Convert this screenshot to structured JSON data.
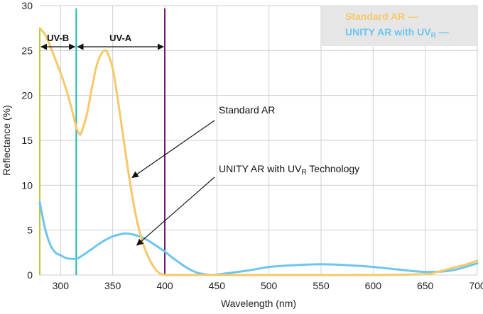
{
  "chart_data": {
    "type": "line",
    "title": "",
    "xlabel": "Wavelength (nm)",
    "ylabel": "Reflectance (%)",
    "xlim": [
      280,
      700
    ],
    "ylim": [
      0,
      30
    ],
    "x_ticks": [
      300,
      350,
      400,
      450,
      500,
      550,
      600,
      650,
      700
    ],
    "x_tick_labels": [
      "300",
      "350",
      "400",
      "450",
      "500",
      "550",
      "600",
      "650",
      "700"
    ],
    "y_ticks": [
      0,
      5,
      10,
      15,
      20,
      25,
      30
    ],
    "y_tick_labels": [
      "0",
      "5",
      "10",
      "15",
      "20",
      "25",
      "30"
    ],
    "grid": true,
    "colors": {
      "standard": "#f7c86a",
      "unity": "#6cc6ee",
      "uvb_line": "#b5c93a",
      "boundary_315": "#1fb8b0",
      "boundary_400": "#6a1b6a",
      "legend_bg": "#e6e6e6"
    },
    "series": [
      {
        "name": "Standard AR",
        "legend_label": "Standard AR —",
        "x": [
          280,
          285,
          290,
          295,
          300,
          305,
          310,
          315,
          318,
          320,
          325,
          330,
          335,
          340,
          343,
          345,
          350,
          355,
          360,
          365,
          370,
          375,
          380,
          385,
          390,
          395,
          400,
          405,
          410,
          420,
          450,
          500,
          550,
          600,
          650,
          660,
          670,
          680,
          690,
          700
        ],
        "y": [
          27.5,
          26.8,
          25.5,
          24.0,
          22.5,
          20.8,
          18.8,
          16.5,
          15.7,
          15.9,
          17.8,
          20.8,
          23.5,
          24.8,
          25.0,
          24.8,
          23.0,
          19.5,
          15.5,
          11.5,
          8.0,
          5.2,
          3.2,
          1.8,
          0.8,
          0.2,
          0.0,
          0.0,
          0.0,
          0.0,
          0.0,
          0.0,
          0.0,
          0.0,
          0.1,
          0.3,
          0.6,
          0.9,
          1.2,
          1.6
        ]
      },
      {
        "name": "UNITY AR with UVR Technology",
        "legend_label": "UNITY AR with UVR —",
        "x": [
          280,
          285,
          290,
          295,
          300,
          305,
          310,
          315,
          320,
          330,
          340,
          350,
          360,
          365,
          370,
          380,
          390,
          400,
          410,
          420,
          430,
          440,
          445,
          450,
          460,
          480,
          500,
          525,
          550,
          575,
          600,
          625,
          650,
          675,
          700
        ],
        "y": [
          8.1,
          5.2,
          3.4,
          2.5,
          2.2,
          1.9,
          1.8,
          1.8,
          2.1,
          2.9,
          3.7,
          4.3,
          4.6,
          4.6,
          4.5,
          4.1,
          3.4,
          2.6,
          1.7,
          0.9,
          0.3,
          0.05,
          0.0,
          0.05,
          0.2,
          0.5,
          0.9,
          1.1,
          1.2,
          1.1,
          0.9,
          0.6,
          0.35,
          0.5,
          1.3
        ]
      }
    ],
    "bands": [
      {
        "label": "UV-B",
        "from": 280,
        "to": 315
      },
      {
        "label": "UV-A",
        "from": 315,
        "to": 400
      }
    ],
    "vertical_lines": [
      280,
      315,
      400
    ],
    "annotations": [
      {
        "text": "Standard AR",
        "points_to_series": "Standard AR",
        "at_x": 368,
        "at_y": 10.7
      },
      {
        "text_main": "UNITY AR with UV",
        "text_sub": "R",
        "text_tail": " Technology",
        "points_to_series": "UNITY AR with UVR Technology",
        "at_x": 380,
        "at_y": 3.4
      }
    ],
    "legend": {
      "placement": "top-right",
      "standard_main": "Standard AR —",
      "unity_main": "UNITY AR with UV",
      "unity_sub": "R",
      "unity_tail": " —"
    }
  }
}
